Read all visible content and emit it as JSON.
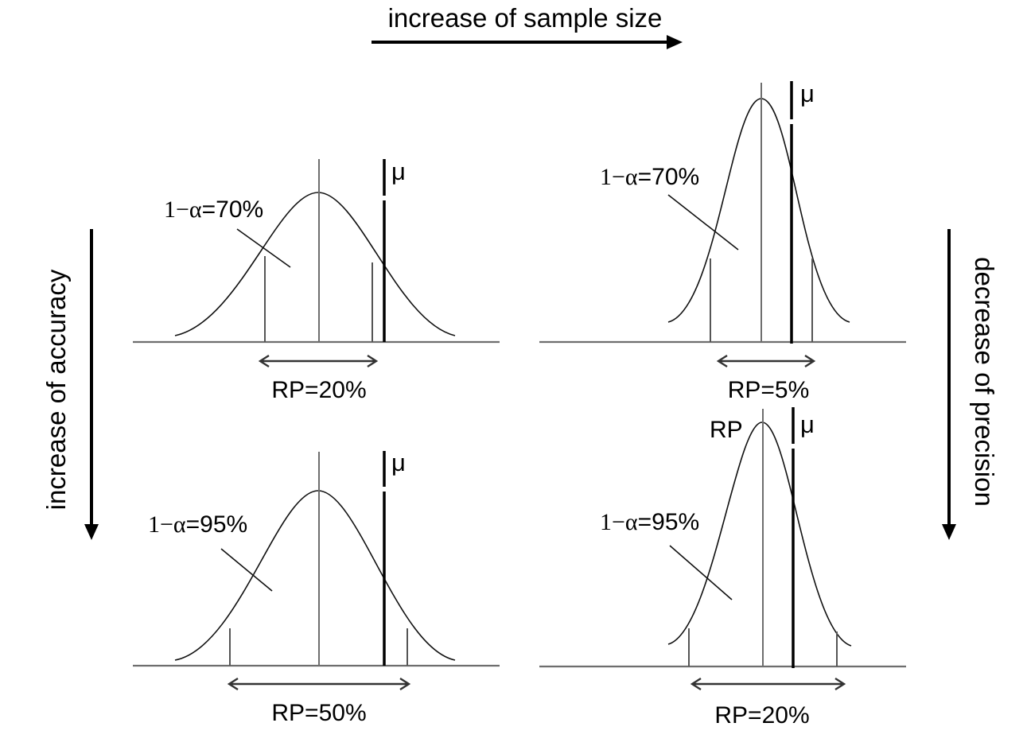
{
  "labels": {
    "top": "increase of sample size",
    "left": "increase of accuracy",
    "right": "decrease of precision"
  },
  "panels": [
    {
      "mu_label": "μ",
      "confidence_prefix": "1−α",
      "confidence_value": "=70%",
      "rp_label": "RP=20%",
      "peak_label": ""
    },
    {
      "mu_label": "μ",
      "confidence_prefix": "1−α",
      "confidence_value": "=70%",
      "rp_label": "RP=5%",
      "peak_label": ""
    },
    {
      "mu_label": "μ",
      "confidence_prefix": "1−α",
      "confidence_value": "=95%",
      "rp_label": "RP=50%",
      "peak_label": ""
    },
    {
      "mu_label": "μ",
      "confidence_prefix": "1−α",
      "confidence_value": "=95%",
      "rp_label": "RP=20%",
      "peak_label": "RP"
    }
  ]
}
